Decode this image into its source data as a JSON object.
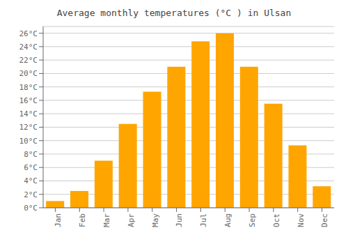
{
  "chart_data": {
    "type": "bar",
    "title": "Average monthly temperatures (°C ) in Ulsan",
    "categories": [
      "Jan",
      "Feb",
      "Mar",
      "Apr",
      "May",
      "Jun",
      "Jul",
      "Aug",
      "Sep",
      "Oct",
      "Nov",
      "Dec"
    ],
    "values": [
      1.0,
      2.5,
      7.0,
      12.5,
      17.3,
      21.0,
      24.8,
      26.0,
      21.0,
      15.5,
      9.3,
      3.2
    ],
    "color": "#FFA500",
    "ylim": [
      0,
      27
    ],
    "yticks": [
      {
        "value": 0,
        "label": "0°C"
      },
      {
        "value": 2,
        "label": "2°C"
      },
      {
        "value": 4,
        "label": "4°C"
      },
      {
        "value": 6,
        "label": "6°C"
      },
      {
        "value": 8,
        "label": "8°C"
      },
      {
        "value": 10,
        "label": "10°C"
      },
      {
        "value": 12,
        "label": "12°C"
      },
      {
        "value": 14,
        "label": "14°C"
      },
      {
        "value": 16,
        "label": "16°C"
      },
      {
        "value": 18,
        "label": "18°C"
      },
      {
        "value": 20,
        "label": "20°C"
      },
      {
        "value": 22,
        "label": "22°C"
      },
      {
        "value": 24,
        "label": "24°C"
      },
      {
        "value": 26,
        "label": "26°C"
      }
    ],
    "grid": true
  }
}
